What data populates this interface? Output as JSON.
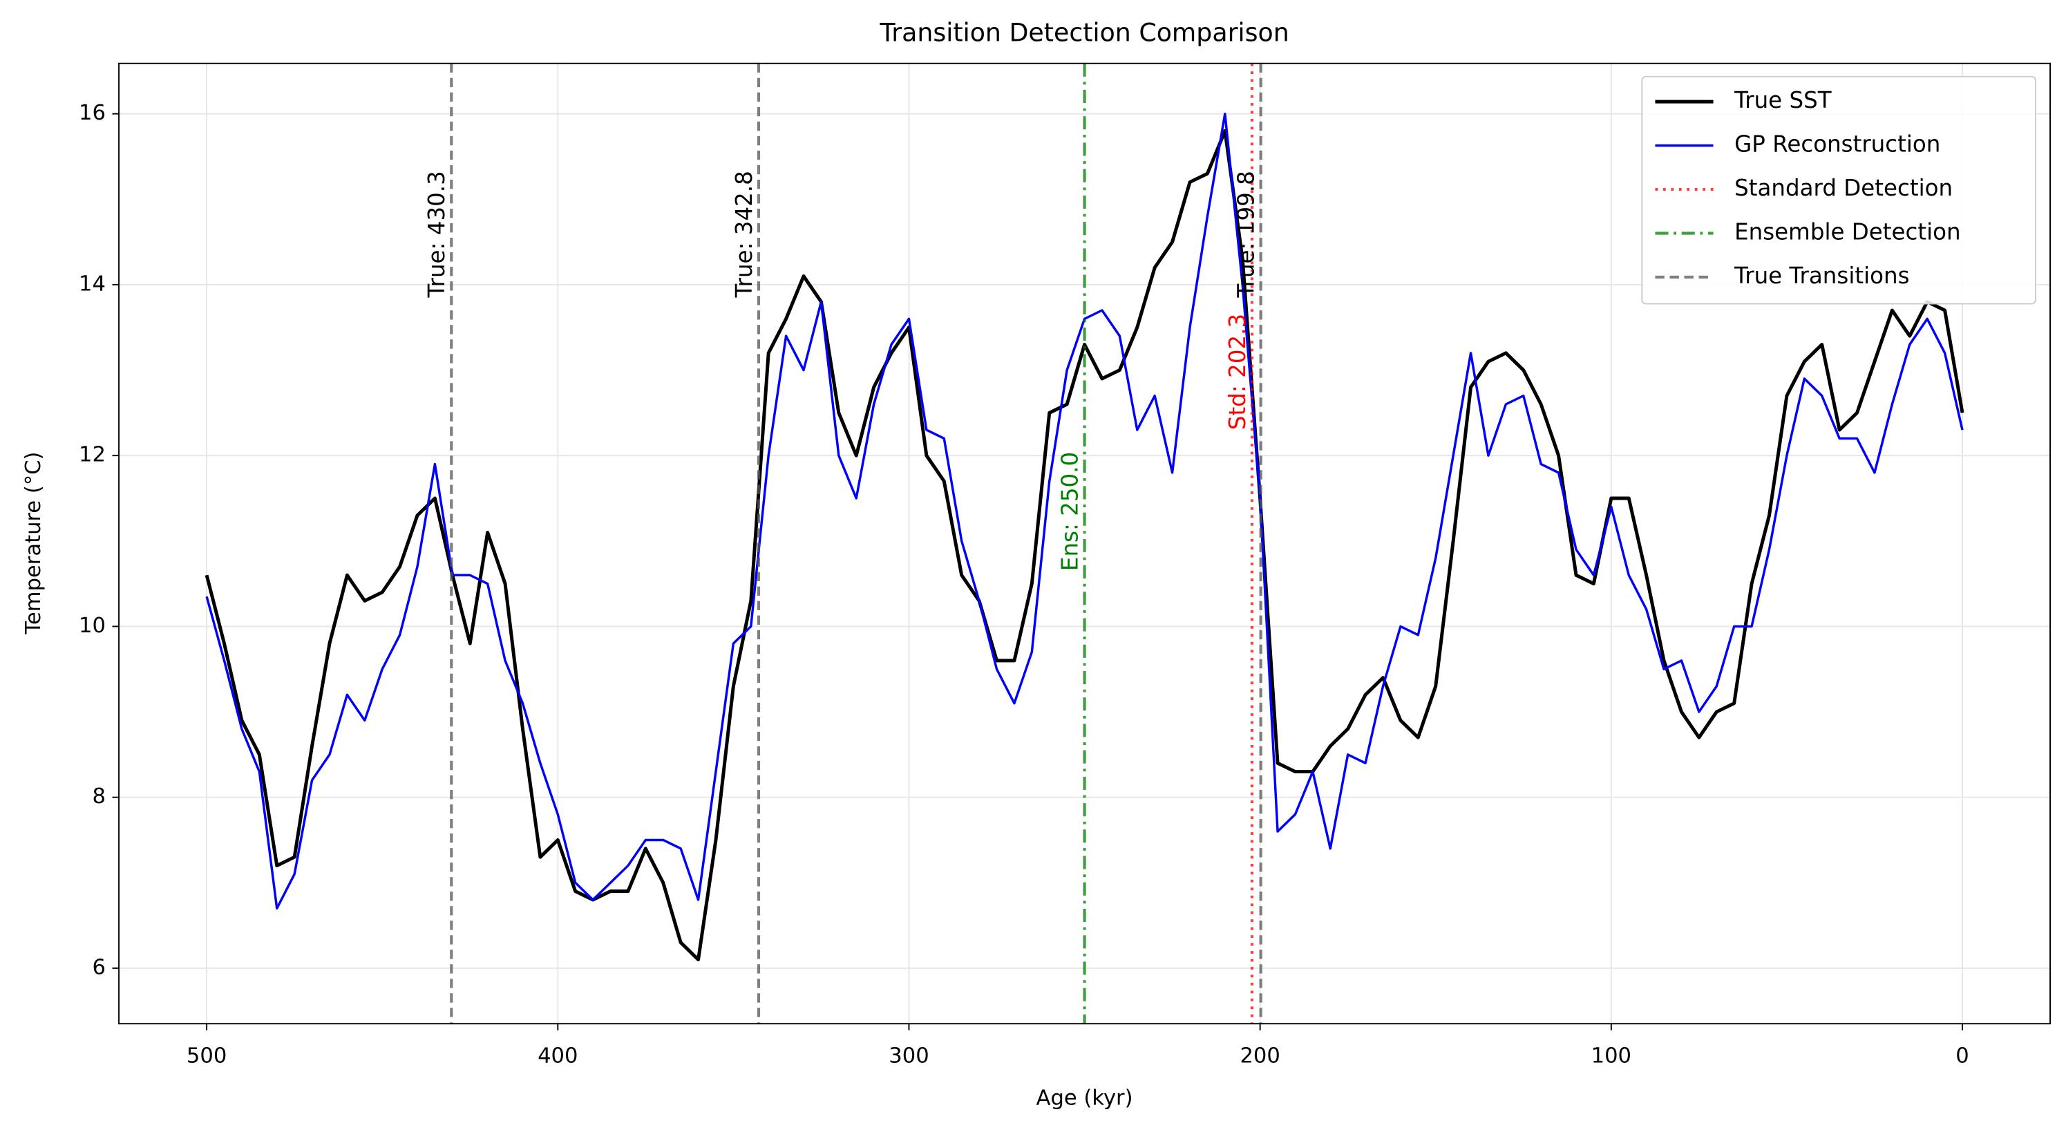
{
  "chart_data": {
    "type": "line",
    "title": "Transition Detection Comparison",
    "x_label": "Age (kyr)",
    "y_label": "Temperature (°C)",
    "x": [
      500,
      495,
      490,
      485,
      480,
      475,
      470,
      465,
      460,
      455,
      450,
      445,
      440,
      435,
      430,
      425,
      420,
      415,
      410,
      405,
      400,
      395,
      390,
      385,
      380,
      375,
      370,
      365,
      360,
      355,
      350,
      345,
      340,
      335,
      330,
      325,
      320,
      315,
      310,
      305,
      300,
      295,
      290,
      285,
      280,
      275,
      270,
      265,
      260,
      255,
      250,
      245,
      240,
      235,
      230,
      225,
      220,
      215,
      210,
      205,
      200,
      195,
      190,
      185,
      180,
      175,
      170,
      165,
      160,
      155,
      150,
      145,
      140,
      135,
      130,
      125,
      120,
      115,
      110,
      105,
      100,
      95,
      90,
      85,
      80,
      75,
      70,
      65,
      60,
      55,
      50,
      45,
      40,
      35,
      30,
      25,
      20,
      15,
      10,
      5,
      0
    ],
    "series": [
      {
        "name": "True SST",
        "color": "#000000",
        "width": 2.6,
        "values": [
          10.6,
          9.8,
          8.9,
          8.5,
          7.2,
          7.3,
          8.6,
          9.8,
          10.6,
          10.3,
          10.4,
          10.7,
          11.3,
          11.5,
          10.6,
          9.8,
          11.1,
          10.5,
          8.8,
          7.3,
          7.5,
          6.9,
          6.8,
          6.9,
          6.9,
          7.4,
          7.0,
          6.3,
          6.1,
          7.5,
          9.3,
          10.3,
          13.2,
          13.6,
          14.1,
          13.8,
          12.5,
          12.0,
          12.8,
          13.2,
          13.5,
          12.0,
          11.7,
          10.6,
          10.3,
          9.6,
          9.6,
          10.5,
          12.5,
          12.6,
          13.3,
          12.9,
          13.0,
          13.5,
          14.2,
          14.5,
          15.2,
          15.3,
          15.8,
          14.3,
          11.5,
          8.4,
          8.3,
          8.3,
          8.6,
          8.8,
          9.2,
          9.4,
          8.9,
          8.7,
          9.3,
          11.0,
          12.8,
          13.1,
          13.2,
          13.0,
          12.6,
          12.0,
          10.6,
          10.5,
          11.5,
          11.5,
          10.6,
          9.6,
          9.0,
          8.7,
          9.0,
          9.1,
          10.5,
          11.3,
          12.7,
          13.1,
          13.3,
          12.3,
          12.5,
          13.1,
          13.7,
          13.4,
          13.8,
          13.7,
          12.5
        ]
      },
      {
        "name": "GP Reconstruction",
        "color": "#0000ff",
        "width": 1.8,
        "values": [
          10.35,
          9.6,
          8.8,
          8.3,
          6.7,
          7.1,
          8.2,
          8.5,
          9.2,
          8.9,
          9.5,
          9.9,
          10.7,
          11.9,
          10.6,
          10.6,
          10.5,
          9.6,
          9.1,
          8.4,
          7.8,
          7.0,
          6.8,
          7.0,
          7.2,
          7.5,
          7.5,
          7.4,
          6.8,
          8.3,
          9.8,
          10.0,
          12.0,
          13.4,
          13.0,
          13.8,
          12.0,
          11.5,
          12.6,
          13.3,
          13.6,
          12.3,
          12.2,
          11.0,
          10.3,
          9.5,
          9.1,
          9.7,
          11.7,
          13.0,
          13.6,
          13.7,
          13.4,
          12.3,
          12.7,
          11.8,
          13.5,
          14.8,
          16.0,
          14.0,
          11.5,
          7.6,
          7.8,
          8.3,
          7.4,
          8.5,
          8.4,
          9.3,
          10.0,
          9.9,
          10.8,
          12.0,
          13.2,
          12.0,
          12.6,
          12.7,
          11.9,
          11.8,
          10.9,
          10.6,
          11.4,
          10.6,
          10.2,
          9.5,
          9.6,
          9.0,
          9.3,
          10.0,
          10.0,
          10.9,
          12.0,
          12.9,
          12.7,
          12.2,
          12.2,
          11.8,
          12.6,
          13.3,
          13.6,
          13.2,
          12.3
        ]
      }
    ],
    "vlines": [
      {
        "name": "Standard Detection",
        "color": "#ff0000",
        "dash": "2 4",
        "lines": [
          {
            "x": 202.3,
            "label": "Std: 202.3"
          }
        ]
      },
      {
        "name": "Ensemble Detection",
        "color": "#008000",
        "dash": "10 4 2 4",
        "lines": [
          {
            "x": 250.0,
            "label": "Ens: 250.0"
          }
        ]
      },
      {
        "name": "True Transitions",
        "color": "#555555",
        "dash": "7 4",
        "lines": [
          {
            "x": 430.3,
            "label": "True: 430.3"
          },
          {
            "x": 342.8,
            "label": "True: 342.8"
          },
          {
            "x": 199.8,
            "label": "True: 199.8"
          }
        ]
      }
    ],
    "xlim": [
      525,
      -25
    ],
    "ylim": [
      5.35,
      16.59
    ],
    "xticks": [
      500,
      400,
      300,
      200,
      100,
      0
    ],
    "yticks": [
      6,
      8,
      10,
      12,
      14,
      16
    ],
    "grid": true,
    "legend": "upper right"
  }
}
